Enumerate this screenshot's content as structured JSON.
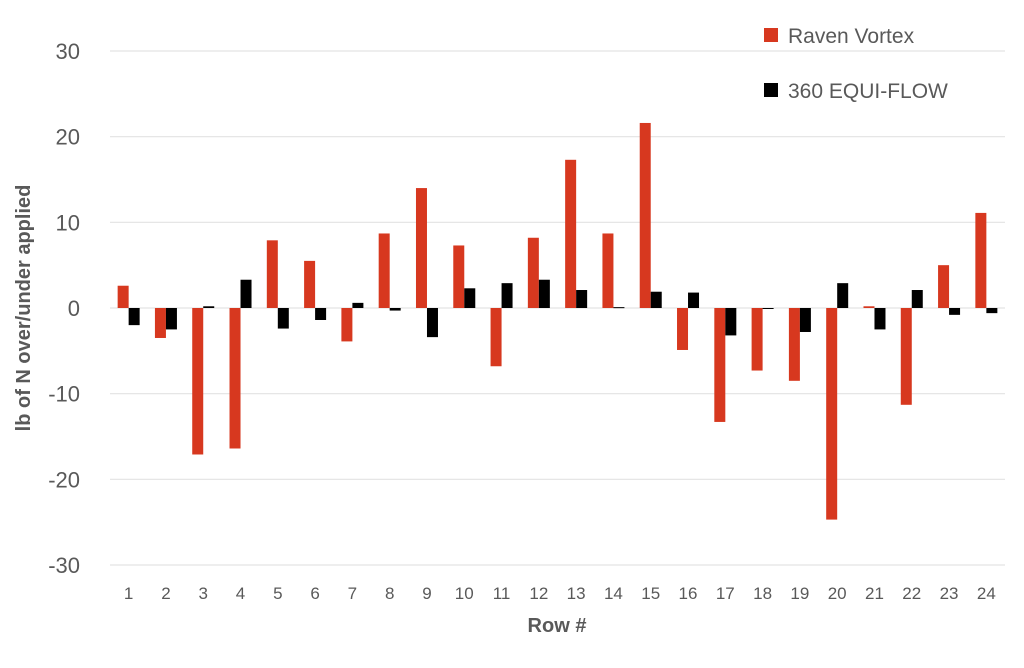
{
  "chart_data": {
    "type": "bar",
    "title": "",
    "xlabel": "Row #",
    "ylabel": "lb of N over/under applied",
    "ylim": [
      -30,
      30
    ],
    "yticks": [
      30,
      20,
      10,
      0,
      -10,
      -20,
      -30
    ],
    "grid": true,
    "legend_position": "top-right",
    "categories": [
      "1",
      "2",
      "3",
      "4",
      "5",
      "6",
      "7",
      "8",
      "9",
      "10",
      "11",
      "12",
      "13",
      "14",
      "15",
      "16",
      "17",
      "18",
      "19",
      "20",
      "21",
      "22",
      "23",
      "24"
    ],
    "series": [
      {
        "name": "Raven Vortex",
        "color": "#d7381f",
        "values": [
          2.6,
          -3.5,
          -17.1,
          -16.4,
          7.9,
          5.5,
          -3.9,
          8.7,
          14.0,
          7.3,
          -6.8,
          8.2,
          17.3,
          8.7,
          21.6,
          -4.9,
          -13.3,
          -7.3,
          -8.5,
          -24.7,
          0.2,
          -11.3,
          5.0,
          11.1
        ]
      },
      {
        "name": "360 EQUI-FLOW",
        "color": "#000000",
        "values": [
          -2.0,
          -2.5,
          0.2,
          3.3,
          -2.4,
          -1.4,
          0.6,
          -0.3,
          -3.4,
          2.3,
          2.9,
          3.3,
          2.1,
          0.1,
          1.9,
          1.8,
          -3.2,
          -0.1,
          -2.8,
          2.9,
          -2.5,
          2.1,
          -0.8,
          -0.6
        ]
      }
    ]
  }
}
